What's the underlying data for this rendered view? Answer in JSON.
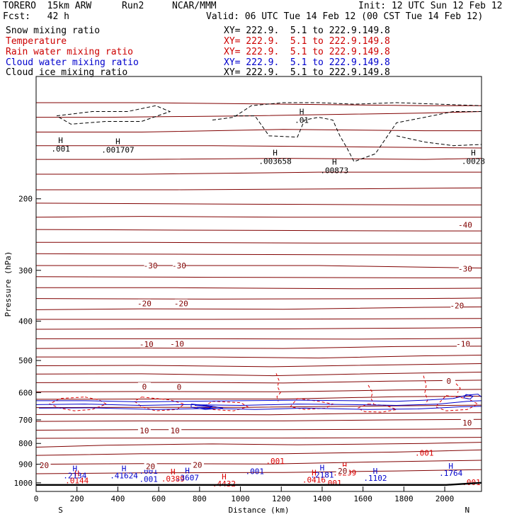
{
  "header": {
    "model": "TORERO  15km ARW",
    "run": "Run2",
    "org": "NCAR/MMM",
    "init": "Init: 12 UTC Sun 12 Feb 12",
    "fcst": "Fcst:   42 h",
    "valid": "Valid: 06 UTC Tue 14 Feb 12 (00 CST Tue 14 Feb 12)"
  },
  "legend": [
    {
      "label": "Snow mixing ratio",
      "color": "#000000",
      "xy": ""
    },
    {
      "label": "Temperature",
      "color": "#cc0000",
      "xy": "XY= 222.9.  5.1 to 222.9.149.8"
    },
    {
      "label": "Rain water mixing ratio",
      "color": "#cc0000",
      "xy": "XY= 222.9.  5.1 to 222.9.149.8"
    },
    {
      "label": "Cloud water mixing ratio",
      "color": "#0000cc",
      "xy": "XY= 222.9.  5.1 to 222.9.149.8"
    },
    {
      "label": "Cloud ice mixing ratio",
      "color": "#000000",
      "xy": "XY= 222.9.  5.1 to 222.9.149.8"
    }
  ],
  "first_xy": "XY= 222.9.  5.1 to 222.9.149.8",
  "colors": {
    "temperature": "#800000",
    "rain": "#dd0000",
    "cloud_water": "#0000cc",
    "snow": "#000000"
  },
  "chart_data": {
    "type": "cross-section",
    "xlabel": "Distance (km)",
    "ylabel": "Pressure (hPa)",
    "xlim": [
      0,
      2180
    ],
    "ylim": [
      1050,
      100
    ],
    "y_scale": "log",
    "x_ticks": [
      0,
      200,
      400,
      600,
      800,
      1000,
      1200,
      1400,
      1600,
      1800,
      2000
    ],
    "y_ticks": [
      200,
      300,
      400,
      500,
      600,
      700,
      800,
      900,
      1000
    ],
    "endpoints": {
      "left": "S",
      "right": "N"
    },
    "temperature_isotherms": [
      {
        "label": "-40",
        "values": [
          {
            "x": 2100,
            "p": 232
          }
        ]
      },
      {
        "label": "-30",
        "values": [
          {
            "x": 560,
            "p": 292
          },
          {
            "x": 700,
            "p": 292
          },
          {
            "x": 2100,
            "p": 297
          }
        ]
      },
      {
        "label": "-20",
        "values": [
          {
            "x": 530,
            "p": 362
          },
          {
            "x": 710,
            "p": 362
          },
          {
            "x": 2060,
            "p": 366
          }
        ]
      },
      {
        "label": "-10",
        "values": [
          {
            "x": 540,
            "p": 456
          },
          {
            "x": 690,
            "p": 455
          },
          {
            "x": 2090,
            "p": 455
          }
        ]
      },
      {
        "label": "0",
        "values": [
          {
            "x": 530,
            "p": 580
          },
          {
            "x": 700,
            "p": 581
          },
          {
            "x": 2020,
            "p": 562
          }
        ]
      },
      {
        "label": "10",
        "values": [
          {
            "x": 530,
            "p": 743
          },
          {
            "x": 680,
            "p": 743
          },
          {
            "x": 2110,
            "p": 711
          }
        ]
      },
      {
        "label": "20",
        "values": [
          {
            "x": 40,
            "p": 905
          },
          {
            "x": 560,
            "p": 911
          },
          {
            "x": 790,
            "p": 904
          },
          {
            "x": 1500,
            "p": 934
          }
        ]
      }
    ],
    "snow_maxima": [
      {
        "x": 120,
        "p": 153,
        "label": ".001"
      },
      {
        "x": 400,
        "p": 154,
        "label": ".001707"
      },
      {
        "x": 1170,
        "p": 164,
        "label": ".003658"
      },
      {
        "x": 1460,
        "p": 173,
        "label": ".00873"
      },
      {
        "x": 2140,
        "p": 164,
        "label": ".0028"
      },
      {
        "x": 1300,
        "p": 130,
        "label": ".01"
      }
    ],
    "rain_maxima": [
      {
        "x": 200,
        "p": 1003,
        "label": ".0144"
      },
      {
        "x": 670,
        "p": 993,
        "label": ".0389"
      },
      {
        "x": 920,
        "p": 1021,
        "label": ".4432"
      },
      {
        "x": 1360,
        "p": 998,
        "label": ".0416"
      },
      {
        "x": 1510,
        "p": 960,
        "label": ".0299"
      },
      {
        "x": 1170,
        "p": 897,
        "label": ".001"
      },
      {
        "x": 1450,
        "p": 1016,
        "label": ".001"
      },
      {
        "x": 1900,
        "p": 857,
        "label": ".001"
      },
      {
        "x": 2130,
        "p": 1012,
        "label": ".001"
      }
    ],
    "cloud_water_maxima": [
      {
        "x": 190,
        "p": 975,
        "label": ".2134"
      },
      {
        "x": 430,
        "p": 975,
        "label": ".41624"
      },
      {
        "x": 550,
        "p": 950,
        "label": ".001"
      },
      {
        "x": 550,
        "p": 995,
        "label": ".001"
      },
      {
        "x": 740,
        "p": 987,
        "label": ".3607"
      },
      {
        "x": 1070,
        "p": 951,
        "label": ".001"
      },
      {
        "x": 1400,
        "p": 971,
        "label": ".2181"
      },
      {
        "x": 1660,
        "p": 989,
        "label": ".1102"
      },
      {
        "x": 2030,
        "p": 962,
        "label": ".1764"
      }
    ]
  }
}
